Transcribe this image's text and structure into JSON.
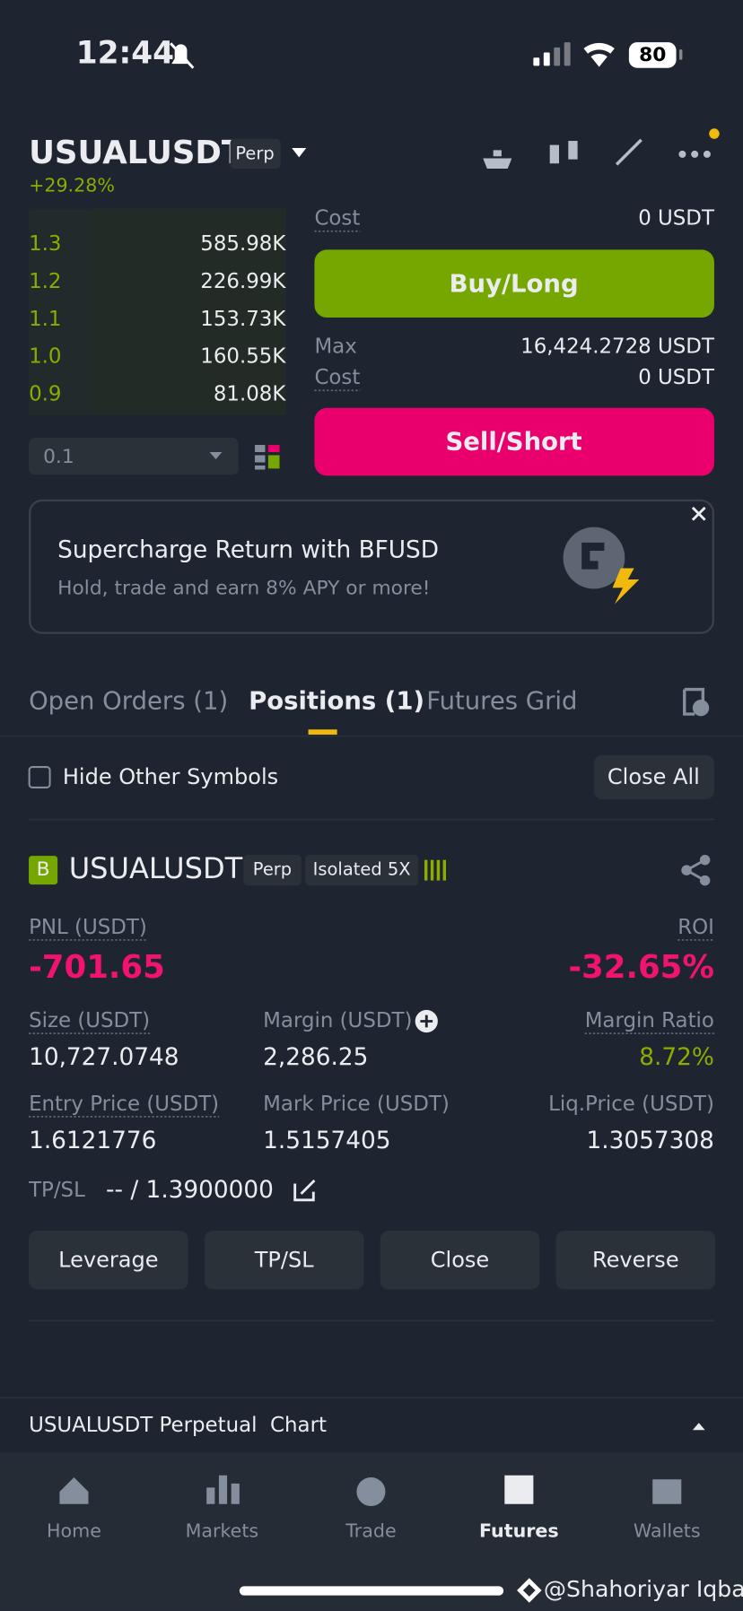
{
  "status_bar": {
    "time": "12:44",
    "battery": "80"
  },
  "header": {
    "symbol": "USUALUSDT",
    "contract": "Perp",
    "change": "+29.28%"
  },
  "order_book": {
    "rows": [
      {
        "price": "1.3",
        "amount": "585.98K"
      },
      {
        "price": "1.2",
        "amount": "226.99K"
      },
      {
        "price": "1.1",
        "amount": "153.73K"
      },
      {
        "price": "1.0",
        "amount": "160.55K"
      },
      {
        "price": "0.9",
        "amount": "81.08K"
      }
    ],
    "precision": "0.1"
  },
  "order_form": {
    "cost_label": "Cost",
    "cost": "0 USDT",
    "buy": "Buy/Long",
    "max_label": "Max",
    "max": "16,424.2728 USDT",
    "sell_cost_label": "Cost",
    "sell_cost": "0 USDT",
    "sell": "Sell/Short"
  },
  "banner": {
    "title": "Supercharge Return with BFUSD",
    "subtitle": "Hold, trade and earn 8% APY or more!"
  },
  "tabs": [
    "Open Orders (1)",
    "Positions (1)",
    "Futures Grid"
  ],
  "filter": {
    "hide_other": "Hide Other Symbols",
    "close_all": "Close All"
  },
  "position": {
    "side": "B",
    "symbol": "USUALUSDT",
    "contract": "Perp",
    "mode": "Isolated 5X",
    "pnl_label": "PNL (USDT)",
    "pnl": "-701.65",
    "roi_label": "ROI",
    "roi": "-32.65%",
    "fields": [
      {
        "label": "Size (USDT)",
        "value": "10,727.0748"
      },
      {
        "label": "Margin (USDT)",
        "value": "2,286.25"
      },
      {
        "label": "Margin Ratio",
        "value": "8.72%"
      },
      {
        "label": "Entry Price (USDT)",
        "value": "1.6121776"
      },
      {
        "label": "Mark Price (USDT)",
        "value": "1.5157405"
      },
      {
        "label": "Liq.Price (USDT)",
        "value": "1.3057308"
      }
    ],
    "tpsl_label": "TP/SL",
    "tpsl": "-- / 1.3900000",
    "actions": [
      "Leverage",
      "TP/SL",
      "Close",
      "Reverse"
    ]
  },
  "chart_bar": "USUALUSDT Perpetual  Chart",
  "nav": [
    "Home",
    "Markets",
    "Trade",
    "Futures",
    "Wallets"
  ],
  "watermark": "@Shahoriyar Iqbal"
}
